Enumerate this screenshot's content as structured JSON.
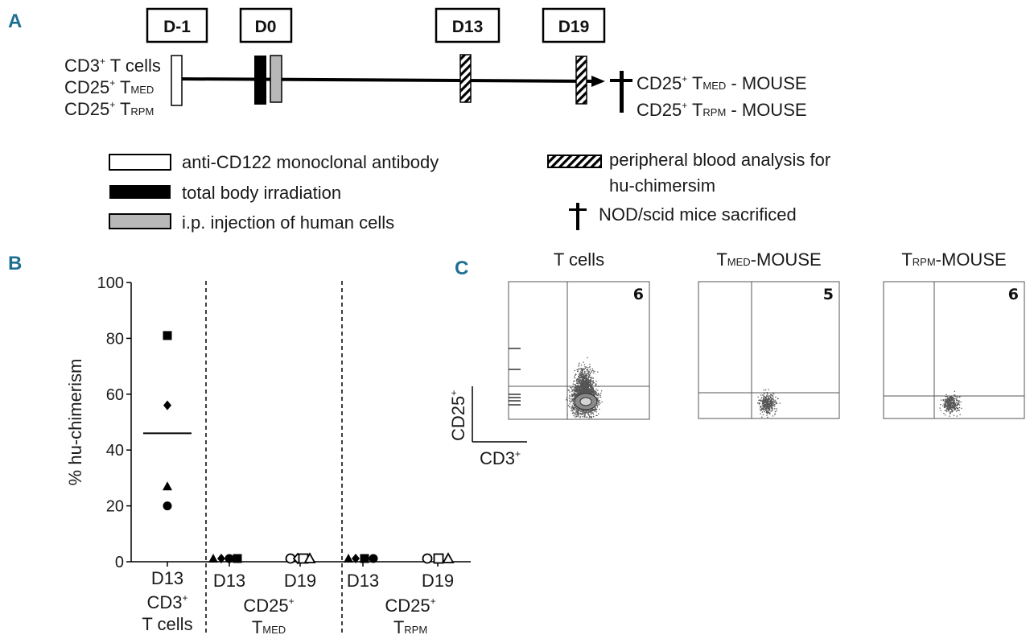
{
  "panel_a": {
    "letter": "A",
    "timepoints": [
      "D-1",
      "D0",
      "D13",
      "D19"
    ],
    "groups": [
      {
        "main": "CD3",
        "sup": "+",
        "rest": " T cells",
        "sub": ""
      },
      {
        "main": "CD25",
        "sup": "+",
        "rest": " T",
        "sub": "MED"
      },
      {
        "main": "CD25",
        "sup": "+",
        "rest": " T",
        "sub": "RPM"
      }
    ],
    "outcomes": [
      {
        "main": "CD25",
        "sup": "+",
        "t": " T",
        "sub": "MED",
        "suffix": " - MOUSE"
      },
      {
        "main": "CD25",
        "sup": "+",
        "t": " T",
        "sub": "RPM",
        "suffix": " - MOUSE"
      }
    ],
    "legend": {
      "white_box": "anti-CD122 monoclonal antibody",
      "black_box": "total body irradiation",
      "gray_box": "i.p. injection of human cells",
      "hatched_box_line1": "peripheral blood analysis for",
      "hatched_box_line2": "hu-chimersim",
      "cross": "NOD/scid mice sacrificed"
    },
    "colors": {
      "white": "#ffffff",
      "black": "#000000",
      "gray": "#b8b8b8"
    }
  },
  "panel_b": {
    "letter": "B",
    "chart_data": {
      "type": "scatter",
      "ylabel": "% hu-chimerism",
      "ylim": [
        0,
        100
      ],
      "yticks": [
        0,
        20,
        40,
        60,
        80,
        100
      ],
      "groups": [
        {
          "x_labels": [
            {
              "line1": "D13",
              "x": 0
            }
          ],
          "group_line1": "CD3",
          "group_sup": "+",
          "group_line2": "T cells",
          "group_sub": ""
        },
        {
          "x_labels": [
            {
              "line1": "D13",
              "x": 1
            },
            {
              "line1": "D19",
              "x": 2
            }
          ],
          "group_line1": "CD25",
          "group_sup": "+",
          "group_line2": "T",
          "group_sub": "MED"
        },
        {
          "x_labels": [
            {
              "line1": "D13",
              "x": 3
            },
            {
              "line1": "D19",
              "x": 4
            }
          ],
          "group_line1": "CD25",
          "group_sup": "+",
          "group_line2": "T",
          "group_sub": "RPM"
        }
      ],
      "points": [
        {
          "x": 0,
          "y": 81,
          "marker": "square"
        },
        {
          "x": 0,
          "y": 56,
          "marker": "diamond"
        },
        {
          "x": 0,
          "y": 27,
          "marker": "triangle"
        },
        {
          "x": 0,
          "y": 20,
          "marker": "circle"
        },
        {
          "x": 1,
          "y": 0.5,
          "marker": "triangle",
          "offset": -2
        },
        {
          "x": 1,
          "y": 0.5,
          "marker": "diamond",
          "offset": -1
        },
        {
          "x": 1,
          "y": 1,
          "marker": "circle",
          "offset": 0
        },
        {
          "x": 1,
          "y": 0.7,
          "marker": "square",
          "offset": 1
        },
        {
          "x": 2,
          "y": 0.5,
          "marker": "circle-open",
          "offset": -1.2
        },
        {
          "x": 2,
          "y": 0.5,
          "marker": "diamond-open",
          "offset": -0.3
        },
        {
          "x": 2,
          "y": 0.5,
          "marker": "square-open",
          "offset": 0.4
        },
        {
          "x": 2,
          "y": 0.5,
          "marker": "triangle-open",
          "offset": 1.2
        },
        {
          "x": 3,
          "y": 1.5,
          "marker": "triangle",
          "offset": -1.8
        },
        {
          "x": 3,
          "y": 0.8,
          "marker": "diamond",
          "offset": -0.9
        },
        {
          "x": 3,
          "y": 0.8,
          "marker": "square",
          "offset": 0.2
        },
        {
          "x": 3,
          "y": 1.5,
          "marker": "circle",
          "offset": 1.3
        },
        {
          "x": 4,
          "y": 0.5,
          "marker": "circle-open",
          "offset": -1.3
        },
        {
          "x": 4,
          "y": 0.5,
          "marker": "square-open",
          "offset": 0.1
        },
        {
          "x": 4,
          "y": 0.5,
          "marker": "triangle-open",
          "offset": 1.3
        }
      ],
      "means": [
        {
          "x": 0,
          "y": 46
        }
      ]
    }
  },
  "panel_c": {
    "letter": "C",
    "plots": [
      {
        "title_main": "T cells",
        "title_sub": "",
        "title_suffix": "",
        "quadrant_value": "6"
      },
      {
        "title_main": "T",
        "title_sub": "MED",
        "title_suffix": "-MOUSE",
        "quadrant_value": "5"
      },
      {
        "title_main": "T",
        "title_sub": "RPM",
        "title_suffix": "-MOUSE",
        "quadrant_value": "6"
      }
    ],
    "y_axis": {
      "main": "CD25",
      "sup": "+"
    },
    "x_axis": {
      "main": "CD3",
      "sup": "+"
    }
  }
}
